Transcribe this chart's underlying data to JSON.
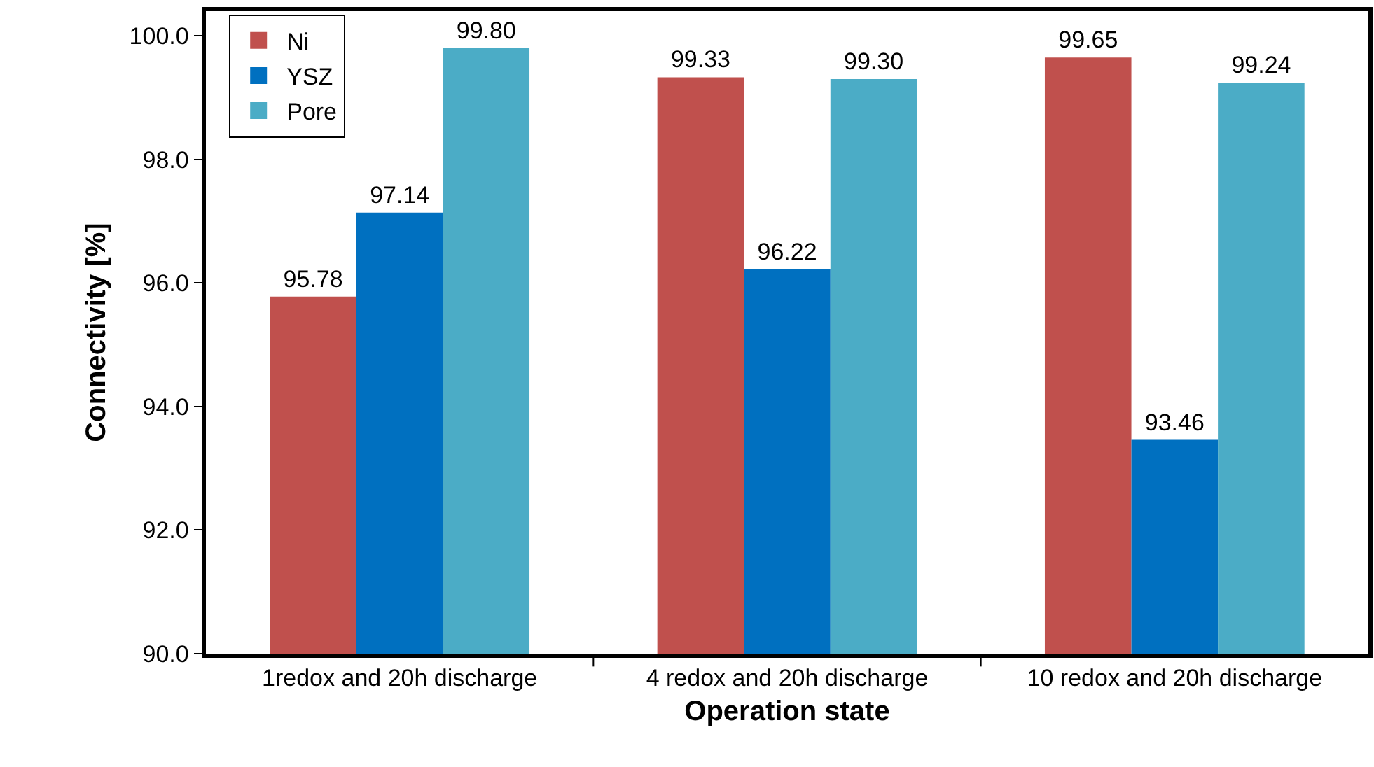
{
  "chart_data": {
    "type": "bar",
    "xlabel": "Operation state",
    "ylabel": "Connectivity [%]",
    "categories": [
      "1redox and 20h discharge",
      "4 redox and 20h discharge",
      "10 redox and 20h discharge"
    ],
    "series": [
      {
        "name": "Ni",
        "color": "#c0504d",
        "values": [
          95.78,
          99.33,
          99.65
        ],
        "value_labels": [
          "95.78",
          "99.33",
          "99.65"
        ]
      },
      {
        "name": "YSZ",
        "color": "#0070c0",
        "values": [
          97.14,
          96.22,
          93.46
        ],
        "value_labels": [
          "97.14",
          "96.22",
          "93.46"
        ]
      },
      {
        "name": "Pore",
        "color": "#4bacc6",
        "values": [
          99.8,
          99.3,
          99.24
        ],
        "value_labels": [
          "99.80",
          "99.30",
          "99.24"
        ]
      }
    ],
    "ylim": [
      90,
      100.4
    ],
    "yticks": [
      {
        "value": 90,
        "label": "90.0"
      },
      {
        "value": 92,
        "label": "92.0"
      },
      {
        "value": 94,
        "label": "94.0"
      },
      {
        "value": 96,
        "label": "96.0"
      },
      {
        "value": 98,
        "label": "98.0"
      },
      {
        "value": 100,
        "label": "100.0"
      }
    ],
    "legend": "top left"
  }
}
